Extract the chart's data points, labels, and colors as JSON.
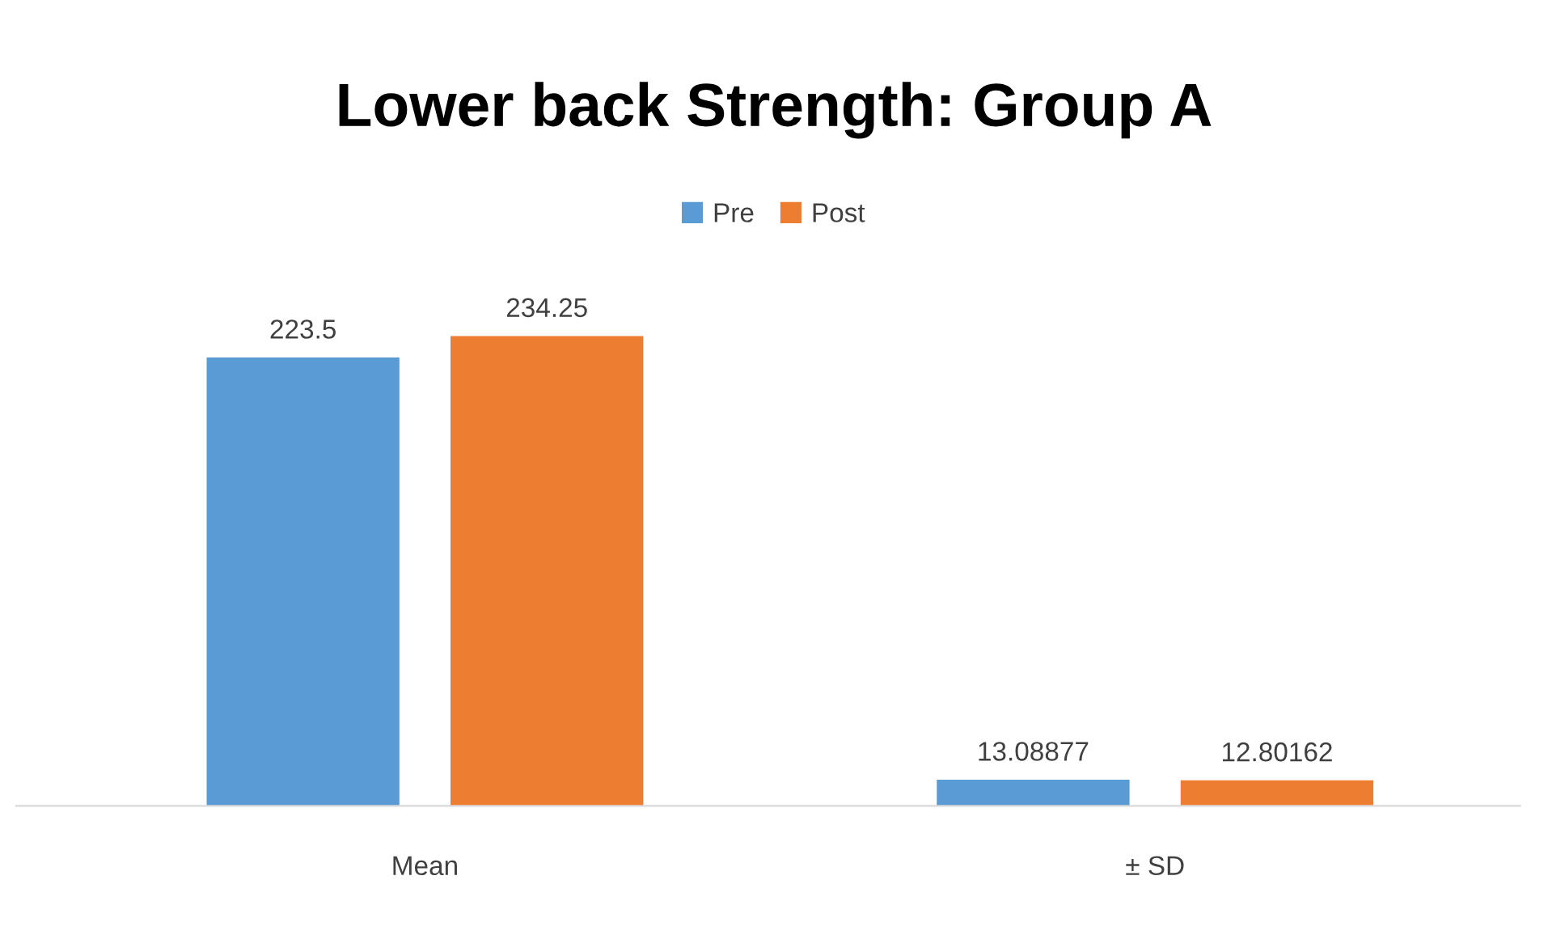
{
  "chart_data": {
    "type": "bar",
    "title": "Lower back Strength: Group A",
    "categories": [
      "Mean",
      "± SD"
    ],
    "series": [
      {
        "name": "Pre",
        "color": "#5b9bd5",
        "values": [
          223.5,
          13.08877
        ]
      },
      {
        "name": "Post",
        "color": "#ed7d31",
        "values": [
          234.25,
          12.80162
        ]
      }
    ],
    "data_labels": true,
    "legend": "top",
    "grid": false
  }
}
